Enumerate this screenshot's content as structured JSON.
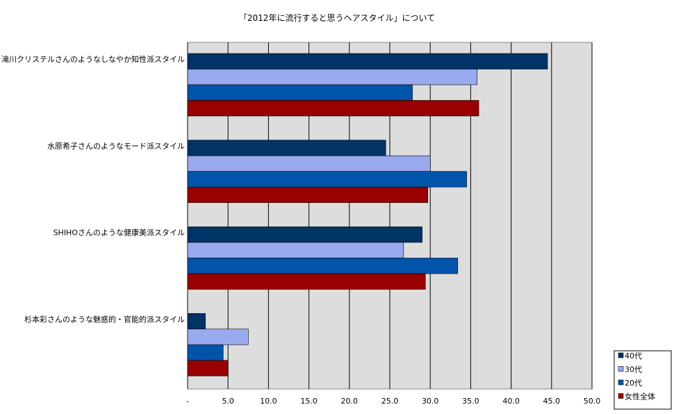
{
  "chart_data": {
    "type": "bar",
    "orientation": "horizontal",
    "title": "「2012年に流行すると思うヘアスタイル」について",
    "categories": [
      "滝川クリステルさんのようなしなやか知性派スタイル",
      "水原希子さんのようなモード派スタイル",
      "SHIHOさんのような健康美派スタイル",
      "杉本彩さんのような魅惑的・官能的派スタイル"
    ],
    "series": [
      {
        "name": "40代",
        "color": "#003366",
        "values": [
          44.5,
          24.5,
          29.0,
          2.2
        ]
      },
      {
        "name": "30代",
        "color": "#99aaee",
        "values": [
          35.8,
          30.0,
          26.7,
          7.5
        ]
      },
      {
        "name": "20代",
        "color": "#0055aa",
        "values": [
          27.8,
          34.5,
          33.4,
          4.4
        ]
      },
      {
        "name": "女性全体",
        "color": "#990000",
        "values": [
          36.0,
          29.7,
          29.4,
          5.0
        ]
      }
    ],
    "xlim": [
      0,
      50
    ],
    "xticks": [
      "-",
      "5.0",
      "10.0",
      "15.0",
      "20.0",
      "25.0",
      "30.0",
      "35.0",
      "40.0",
      "45.0",
      "50.0"
    ],
    "grid": true,
    "legend_position": "bottom-right"
  }
}
